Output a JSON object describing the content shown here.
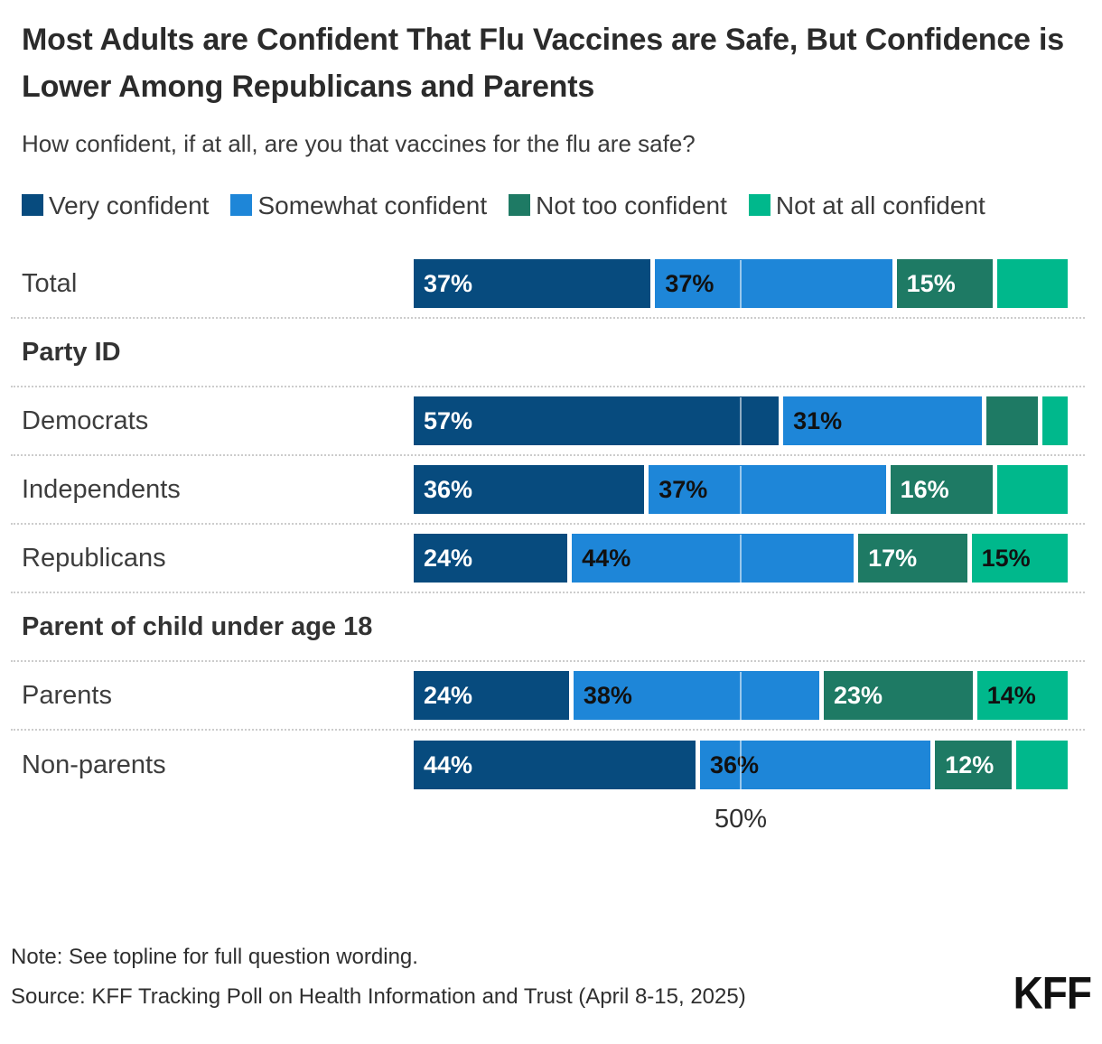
{
  "title": "Most Adults are Confident That Flu Vaccines are Safe, But Confidence is Lower Among Republicans and Parents",
  "subtitle": "How confident, if at all, are you that vaccines for the flu are safe?",
  "legend": [
    {
      "label": "Very confident",
      "color": "#074b7e"
    },
    {
      "label": "Somewhat confident",
      "color": "#1e86d8"
    },
    {
      "label": "Not too confident",
      "color": "#1e7a64"
    },
    {
      "label": "Not at all confident",
      "color": "#00b88c"
    }
  ],
  "chart_data": {
    "type": "bar",
    "stacked": true,
    "orientation": "horizontal",
    "xlim": [
      0,
      100
    ],
    "gridline_at": 50,
    "axis_tick_label": "50%",
    "series_names": [
      "Very confident",
      "Somewhat confident",
      "Not too confident",
      "Not at all confident"
    ],
    "series_colors": [
      "#074b7e",
      "#1e86d8",
      "#1e7a64",
      "#00b88c"
    ],
    "series_label_text_colors": [
      "#ffffff",
      "#111111",
      "#ffffff",
      "#111111"
    ],
    "rows": [
      {
        "type": "bar",
        "label": "Total",
        "values": [
          37,
          37,
          15,
          11
        ],
        "display": [
          "37%",
          "37%",
          "15%",
          ""
        ]
      },
      {
        "type": "header",
        "label": "Party ID"
      },
      {
        "type": "bar",
        "label": "Democrats",
        "values": [
          57,
          31,
          8,
          4
        ],
        "display": [
          "57%",
          "31%",
          "",
          ""
        ]
      },
      {
        "type": "bar",
        "label": "Independents",
        "values": [
          36,
          37,
          16,
          11
        ],
        "display": [
          "36%",
          "37%",
          "16%",
          ""
        ]
      },
      {
        "type": "bar",
        "label": "Republicans",
        "values": [
          24,
          44,
          17,
          15
        ],
        "display": [
          "24%",
          "44%",
          "17%",
          "15%"
        ]
      },
      {
        "type": "header",
        "label": "Parent of child under age 18"
      },
      {
        "type": "bar",
        "label": "Parents",
        "values": [
          24,
          38,
          23,
          14
        ],
        "display": [
          "24%",
          "38%",
          "23%",
          "14%"
        ]
      },
      {
        "type": "bar",
        "label": "Non-parents",
        "values": [
          44,
          36,
          12,
          8
        ],
        "display": [
          "44%",
          "36%",
          "12%",
          ""
        ]
      }
    ]
  },
  "footer": {
    "note": "Note: See topline for full question wording.",
    "source": "Source: KFF Tracking Poll on Health Information and Trust (April 8-15, 2025)",
    "logo": "KFF"
  }
}
